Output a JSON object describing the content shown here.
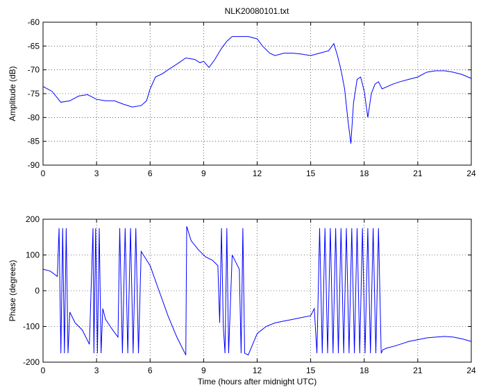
{
  "chart_data": [
    {
      "type": "line",
      "title": "NLK20080101.txt",
      "xlabel": "",
      "ylabel": "Amplitude (dB)",
      "xlim": [
        0,
        24
      ],
      "ylim": [
        -90,
        -60
      ],
      "xticks": [
        "0",
        "3",
        "6",
        "9",
        "12",
        "15",
        "18",
        "21",
        "24"
      ],
      "yticks": [
        "-90",
        "-85",
        "-80",
        "-75",
        "-70",
        "-65",
        "-60"
      ],
      "grid": true,
      "series": [
        {
          "color": "#0000ff",
          "x": [
            0,
            0.5,
            1,
            1.5,
            2,
            2.5,
            3,
            3.5,
            4,
            4.5,
            5,
            5.5,
            5.8,
            6,
            6.3,
            6.7,
            7,
            7.5,
            8,
            8.5,
            8.8,
            9,
            9.3,
            9.6,
            10,
            10.3,
            10.6,
            11,
            11.5,
            12,
            12.3,
            12.7,
            13,
            13.5,
            14,
            14.5,
            15,
            15.5,
            16,
            16.3,
            16.5,
            16.7,
            16.9,
            17.1,
            17.25,
            17.4,
            17.6,
            17.8,
            18,
            18.2,
            18.4,
            18.6,
            18.8,
            19,
            19.3,
            19.6,
            20,
            20.5,
            21,
            21.5,
            22,
            22.5,
            23,
            23.5,
            24
          ],
          "y": [
            -73.5,
            -74.5,
            -76.8,
            -76.5,
            -75.5,
            -75.2,
            -76.2,
            -76.5,
            -76.5,
            -77.2,
            -77.8,
            -77.5,
            -76.5,
            -74,
            -71.5,
            -70.8,
            -70,
            -68.8,
            -67.5,
            -67.8,
            -68.5,
            -68.2,
            -69.5,
            -68,
            -65.5,
            -64,
            -63,
            -63,
            -63,
            -63.5,
            -65,
            -66.5,
            -67,
            -66.5,
            -66.5,
            -66.7,
            -67,
            -66.5,
            -66,
            -64.5,
            -67,
            -70,
            -74,
            -81,
            -85.5,
            -77,
            -72,
            -71.5,
            -74.5,
            -80,
            -75,
            -73,
            -72.5,
            -74,
            -73.5,
            -73,
            -72.5,
            -72,
            -71.5,
            -70.5,
            -70.2,
            -70.2,
            -70.5,
            -71,
            -71.8
          ]
        }
      ]
    },
    {
      "type": "line",
      "title": "",
      "xlabel": "Time (hours after midnight UTC)",
      "ylabel": "Phase (degrees)",
      "xlim": [
        0,
        24
      ],
      "ylim": [
        -200,
        200
      ],
      "xticks": [
        "0",
        "3",
        "6",
        "9",
        "12",
        "15",
        "18",
        "21",
        "24"
      ],
      "yticks": [
        "-200",
        "-100",
        "0",
        "100",
        "200"
      ],
      "grid": true,
      "series": [
        {
          "color": "#0000ff",
          "x": [
            0,
            0.4,
            0.8,
            0.9,
            1.0,
            1.1,
            1.2,
            1.3,
            1.4,
            1.5,
            1.8,
            2.2,
            2.6,
            2.8,
            2.85,
            2.95,
            3.05,
            3.15,
            3.25,
            3.35,
            3.5,
            3.9,
            4.2,
            4.3,
            4.45,
            4.6,
            4.75,
            4.9,
            5.05,
            5.2,
            5.35,
            5.5,
            6,
            6.5,
            7,
            7.5,
            8,
            8.05,
            8.3,
            8.7,
            9.1,
            9.5,
            9.8,
            9.9,
            10.0,
            10.1,
            10.2,
            10.3,
            10.4,
            10.6,
            10.8,
            11.0,
            11.1,
            11.2,
            11.3,
            11.5,
            12,
            12.5,
            13,
            13.5,
            14,
            14.5,
            15,
            15.2,
            15.35,
            15.5,
            15.65,
            15.8,
            15.95,
            16.1,
            16.25,
            16.4,
            16.55,
            16.7,
            16.85,
            17.0,
            17.15,
            17.3,
            17.45,
            17.6,
            17.75,
            17.9,
            18.05,
            18.2,
            18.35,
            18.5,
            18.65,
            18.8,
            18.95,
            19.05,
            19.3,
            19.7,
            20,
            20.5,
            21,
            21.5,
            22,
            22.5,
            23,
            23.5,
            24
          ],
          "y": [
            60,
            55,
            40,
            175,
            -175,
            175,
            -175,
            175,
            -175,
            -60,
            -90,
            -110,
            -150,
            175,
            -175,
            175,
            -175,
            175,
            -175,
            -50,
            -80,
            -110,
            -130,
            175,
            -175,
            175,
            -175,
            175,
            -175,
            175,
            -175,
            110,
            70,
            0,
            -70,
            -130,
            -180,
            180,
            140,
            115,
            95,
            85,
            70,
            -90,
            175,
            -100,
            -175,
            175,
            -175,
            100,
            80,
            60,
            -175,
            175,
            -175,
            -180,
            -120,
            -100,
            -90,
            -85,
            -80,
            -75,
            -70,
            -50,
            -175,
            175,
            -175,
            175,
            -175,
            175,
            -175,
            175,
            -175,
            175,
            -175,
            175,
            -175,
            175,
            -175,
            175,
            -175,
            175,
            -175,
            175,
            -175,
            175,
            -175,
            175,
            -175,
            -165,
            -160,
            -155,
            -150,
            -142,
            -137,
            -132,
            -130,
            -128,
            -130,
            -135,
            -142
          ]
        }
      ]
    }
  ]
}
